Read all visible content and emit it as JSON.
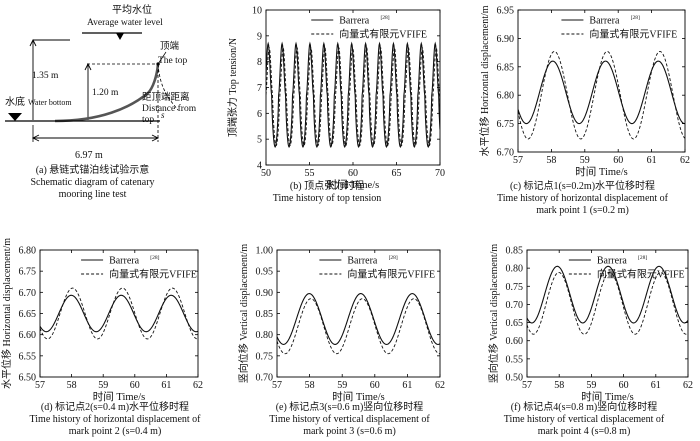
{
  "schematic": {
    "label_avg_cn": "平均水位",
    "label_avg_en": "Average water level",
    "label_top_cn": "顶端",
    "label_top_en": "The top",
    "label_bottom_cn": "水底",
    "label_bottom_en": "Water bottom",
    "label_dist_cn": "距顶端距离",
    "label_dist_en": "Distance from",
    "label_dist_en2": "top",
    "label_dist_s": "s",
    "dim_135": "1.35 m",
    "dim_120": "1.20 m",
    "dim_697": "6.97 m"
  },
  "captions": [
    {
      "line1": "(a) 悬链式锚泊线试验示意",
      "line2": "Schematic diagram of catenary",
      "line3": "mooring line test"
    },
    {
      "line1": "(b) 顶点张力时程",
      "line2": "Time history of top tension",
      "line3": ""
    },
    {
      "line1": "(c) 标记点1(s=0.2m)水平位移时程",
      "line2": "Time history of horizontal displacement of",
      "line3": "mark point 1 (s=0.2 m)"
    },
    {
      "line1": "(d) 标记点2(s=0.4 m)水平位移时程",
      "line2": "Time history of horizontal displacement of",
      "line3": "mark point 2 (s=0.4 m)"
    },
    {
      "line1": "(e) 标记点3(s=0.6 m)竖向位移时程",
      "line2": "Time history of vertical displacement of",
      "line3": "mark point 3 (s=0.6 m)"
    },
    {
      "line1": "(f) 标记点4(s=0.8 m)竖向位移时程",
      "line2": "Time history of vertical displacement of",
      "line3": "mark point 4 (s=0.8 m)"
    }
  ],
  "chart_data": [
    {
      "id": "b",
      "type": "line",
      "xlabel": "时间 Time/s",
      "ylabel": "顶端张力 Top tension/N",
      "xlim": [
        50,
        70
      ],
      "ylim": [
        4,
        10
      ],
      "xticks": [
        50,
        55,
        60,
        65,
        70
      ],
      "yticks": [
        4,
        5,
        6,
        7,
        8,
        9,
        10
      ],
      "legend_position": "top-right",
      "period": 1.6,
      "series": [
        {
          "name": "Barrera",
          "ref": "[28]",
          "style": "solid",
          "mean": 6.7,
          "amp": 2.0,
          "phase": 0.0,
          "x": [
            51.05,
            51.85,
            52.65,
            53.45,
            54.25,
            55.05,
            55.85,
            56.65,
            57.45,
            58.25,
            59.05,
            59.85,
            60.65,
            61.45,
            62.25,
            63.05,
            63.85,
            64.65,
            65.45,
            66.25,
            67.05,
            67.85,
            68.65,
            69.45
          ],
          "y": [
            4.7,
            8.7,
            4.7,
            8.7,
            4.7,
            8.7,
            4.7,
            8.7,
            4.7,
            8.7,
            4.7,
            8.7,
            4.7,
            8.7,
            4.7,
            8.7,
            4.7,
            8.7,
            4.7,
            8.7,
            4.7,
            8.7,
            4.7,
            8.7
          ]
        },
        {
          "name": "向量式有限元VFIFE",
          "ref": "",
          "style": "dashed",
          "mean": 6.65,
          "amp": 1.9,
          "phase": 0.12,
          "x": [
            51.17,
            51.97,
            52.77,
            53.57,
            54.37,
            55.17,
            55.97,
            56.77,
            57.57,
            58.37,
            59.17,
            59.97,
            60.77,
            61.57,
            62.37,
            63.17,
            63.97,
            64.77,
            65.57,
            66.37,
            67.17,
            67.97,
            68.77,
            69.57
          ],
          "y": [
            4.75,
            8.55,
            4.75,
            8.55,
            4.75,
            8.55,
            4.75,
            8.55,
            4.75,
            8.55,
            4.75,
            8.55,
            4.75,
            8.55,
            4.75,
            8.55,
            4.75,
            8.55,
            4.75,
            8.55,
            4.75,
            8.55,
            4.75,
            8.55
          ]
        }
      ]
    },
    {
      "id": "c",
      "type": "line",
      "xlabel": "时间 Time/s",
      "ylabel": "水平位移 Horizontal displacement/m",
      "xlim": [
        57,
        62
      ],
      "ylim": [
        6.7,
        6.95
      ],
      "xticks": [
        57,
        58,
        59,
        60,
        61,
        62
      ],
      "yticks": [
        6.7,
        6.75,
        6.8,
        6.85,
        6.9,
        6.95
      ],
      "legend_position": "top-right",
      "period": 1.58,
      "series": [
        {
          "name": "Barrera",
          "ref": "[28]",
          "style": "solid",
          "mean": 6.805,
          "amp": 0.055,
          "phase": 0.0,
          "x": [
            57.25,
            58.04,
            58.83,
            59.62,
            60.41,
            61.2,
            61.99
          ],
          "y": [
            6.75,
            6.86,
            6.75,
            6.86,
            6.75,
            6.86,
            6.75
          ]
        },
        {
          "name": "向量式有限元VFIFE",
          "ref": "",
          "style": "dashed",
          "mean": 6.8,
          "amp": 0.077,
          "phase": 0.05,
          "x": [
            57.3,
            58.09,
            58.88,
            59.67,
            60.46,
            61.25,
            62.04
          ],
          "y": [
            6.723,
            6.877,
            6.723,
            6.877,
            6.723,
            6.877,
            6.723
          ]
        }
      ]
    },
    {
      "id": "d",
      "type": "line",
      "xlabel": "时间 Time/s",
      "ylabel": "水平位移 Horizontal displacement/m",
      "xlim": [
        57,
        62
      ],
      "ylim": [
        6.5,
        6.8
      ],
      "xticks": [
        57,
        58,
        59,
        60,
        61,
        62
      ],
      "yticks": [
        6.5,
        6.55,
        6.6,
        6.65,
        6.7,
        6.75,
        6.8
      ],
      "legend_position": "top-right",
      "period": 1.58,
      "series": [
        {
          "name": "Barrera",
          "ref": "[28]",
          "style": "solid",
          "mean": 6.65,
          "amp": 0.043,
          "phase": 0.0,
          "x": [
            57.2,
            57.99,
            58.78,
            59.57,
            60.36,
            61.15,
            61.94
          ],
          "y": [
            6.607,
            6.693,
            6.607,
            6.693,
            6.607,
            6.693,
            6.607
          ]
        },
        {
          "name": "向量式有限元VFIFE",
          "ref": "",
          "style": "dashed",
          "mean": 6.65,
          "amp": 0.06,
          "phase": 0.04,
          "x": [
            57.24,
            58.03,
            58.82,
            59.61,
            60.4,
            61.19,
            61.98
          ],
          "y": [
            6.59,
            6.71,
            6.59,
            6.71,
            6.59,
            6.71,
            6.59
          ]
        }
      ]
    },
    {
      "id": "e",
      "type": "line",
      "xlabel": "时间 Time/s",
      "ylabel": "竖向位移 Vertical displacement/m",
      "xlim": [
        57,
        62
      ],
      "ylim": [
        0.7,
        1.0
      ],
      "xticks": [
        57,
        58,
        59,
        60,
        61,
        62
      ],
      "yticks": [
        0.7,
        0.75,
        0.8,
        0.85,
        0.9,
        0.95,
        1.0
      ],
      "legend_position": "top-right",
      "period": 1.58,
      "series": [
        {
          "name": "Barrera",
          "ref": "[28]",
          "style": "solid",
          "mean": 0.837,
          "amp": 0.06,
          "phase": 0.0,
          "x": [
            57.2,
            57.99,
            58.78,
            59.57,
            60.36,
            61.15,
            61.94
          ],
          "y": [
            0.777,
            0.897,
            0.777,
            0.897,
            0.777,
            0.897,
            0.777
          ]
        },
        {
          "name": "向量式有限元VFIFE",
          "ref": "",
          "style": "dashed",
          "mean": 0.82,
          "amp": 0.065,
          "phase": 0.05,
          "x": [
            57.25,
            58.04,
            58.83,
            59.62,
            60.41,
            61.2,
            61.99
          ],
          "y": [
            0.755,
            0.885,
            0.755,
            0.885,
            0.755,
            0.885,
            0.755
          ]
        }
      ]
    },
    {
      "id": "f",
      "type": "line",
      "xlabel": "时间 Time/s",
      "ylabel": "竖向位移 Vertical displacement/m",
      "xlim": [
        57,
        62
      ],
      "ylim": [
        0.5,
        0.85
      ],
      "xticks": [
        57,
        58,
        59,
        60,
        61,
        62
      ],
      "yticks": [
        0.5,
        0.55,
        0.6,
        0.65,
        0.7,
        0.75,
        0.8,
        0.85
      ],
      "legend_position": "top-right",
      "period": 1.58,
      "series": [
        {
          "name": "Barrera",
          "ref": "[28]",
          "style": "solid",
          "mean": 0.727,
          "amp": 0.078,
          "phase": 0.0,
          "x": [
            57.15,
            57.94,
            58.73,
            59.52,
            60.31,
            61.1,
            61.89
          ],
          "y": [
            0.649,
            0.805,
            0.649,
            0.805,
            0.649,
            0.805,
            0.649
          ]
        },
        {
          "name": "向量式有限元VFIFE",
          "ref": "",
          "style": "dashed",
          "mean": 0.703,
          "amp": 0.085,
          "phase": 0.05,
          "x": [
            57.2,
            57.99,
            58.78,
            59.57,
            60.36,
            61.15,
            61.94
          ],
          "y": [
            0.618,
            0.788,
            0.618,
            0.788,
            0.618,
            0.788,
            0.618
          ]
        }
      ]
    }
  ]
}
